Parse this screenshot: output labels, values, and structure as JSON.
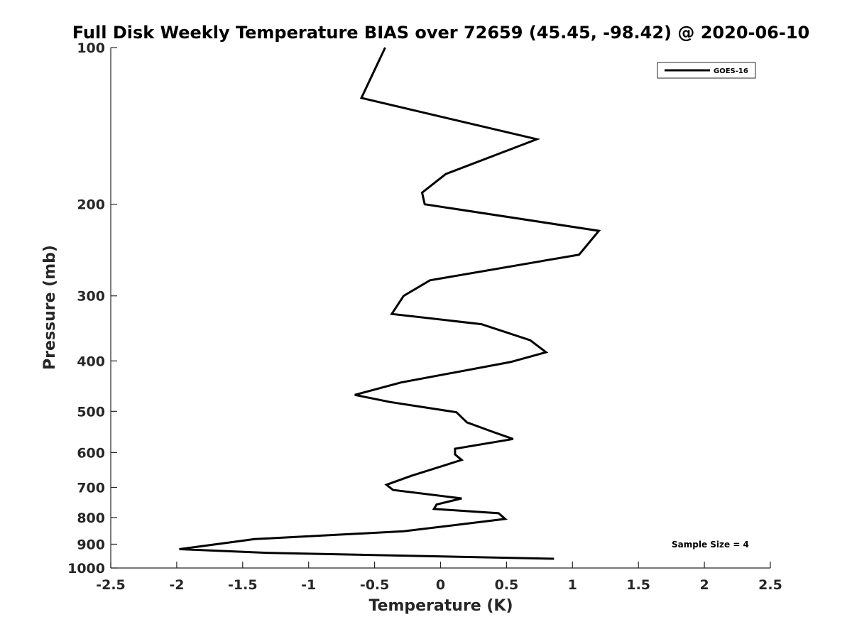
{
  "chart_data": {
    "type": "line",
    "title": "Full Disk Weekly Temperature BIAS over 72659 (45.45, -98.42) @ 2020-06-10",
    "xlabel": "Temperature (K)",
    "ylabel": "Pressure (mb)",
    "xlim": [
      -2.5,
      2.5
    ],
    "ylim": [
      100,
      1000
    ],
    "yscale": "log",
    "y_reversed": true,
    "grid": false,
    "legend_position": "top-right",
    "x_ticks": [
      -2.5,
      -2,
      -1.5,
      -1,
      -0.5,
      0,
      0.5,
      1,
      1.5,
      2,
      2.5
    ],
    "x_tick_labels": [
      "-2.5",
      "-2",
      "-1.5",
      "-1",
      "-0.5",
      "0",
      "0.5",
      "1",
      "1.5",
      "2",
      "2.5"
    ],
    "y_ticks": [
      100,
      200,
      300,
      400,
      500,
      600,
      700,
      800,
      900,
      1000
    ],
    "y_tick_labels": [
      "100",
      "200",
      "300",
      "400",
      "500",
      "600",
      "700",
      "800",
      "900",
      "1000"
    ],
    "annotation": "Sample Size = 4",
    "series": [
      {
        "name": "GOES-16",
        "color": "#000000",
        "points": [
          {
            "x": -0.42,
            "y": 100
          },
          {
            "x": -0.6,
            "y": 125
          },
          {
            "x": 0.73,
            "y": 150
          },
          {
            "x": 0.04,
            "y": 175
          },
          {
            "x": -0.14,
            "y": 190
          },
          {
            "x": -0.12,
            "y": 200
          },
          {
            "x": 1.2,
            "y": 225
          },
          {
            "x": 1.05,
            "y": 250
          },
          {
            "x": -0.08,
            "y": 280
          },
          {
            "x": -0.28,
            "y": 300
          },
          {
            "x": -0.37,
            "y": 325
          },
          {
            "x": 0.31,
            "y": 340
          },
          {
            "x": 0.68,
            "y": 365
          },
          {
            "x": 0.8,
            "y": 385
          },
          {
            "x": 0.53,
            "y": 402
          },
          {
            "x": -0.3,
            "y": 440
          },
          {
            "x": -0.65,
            "y": 465
          },
          {
            "x": -0.38,
            "y": 480
          },
          {
            "x": 0.12,
            "y": 502
          },
          {
            "x": 0.2,
            "y": 525
          },
          {
            "x": 0.4,
            "y": 548
          },
          {
            "x": 0.55,
            "y": 565
          },
          {
            "x": 0.11,
            "y": 590
          },
          {
            "x": 0.11,
            "y": 605
          },
          {
            "x": 0.16,
            "y": 620
          },
          {
            "x": -0.22,
            "y": 665
          },
          {
            "x": -0.41,
            "y": 692
          },
          {
            "x": -0.36,
            "y": 708
          },
          {
            "x": 0.16,
            "y": 735
          },
          {
            "x": -0.03,
            "y": 755
          },
          {
            "x": -0.05,
            "y": 770
          },
          {
            "x": 0.44,
            "y": 785
          },
          {
            "x": 0.49,
            "y": 805
          },
          {
            "x": -0.28,
            "y": 850
          },
          {
            "x": -1.41,
            "y": 880
          },
          {
            "x": -1.98,
            "y": 920
          },
          {
            "x": -1.32,
            "y": 935
          },
          {
            "x": 0.86,
            "y": 960
          }
        ]
      }
    ]
  }
}
